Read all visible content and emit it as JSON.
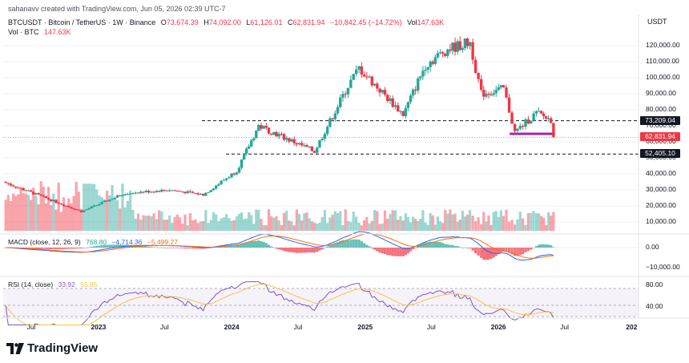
{
  "caption": "sahanavv created with TradingView.com, Jun 05, 2026 02:39 UTC-7",
  "header": {
    "symbol": "BTCUSDT · Bitcoin / TetherUS · 1W · Binance",
    "open_label": "O",
    "open": "73,674.39",
    "high_label": "H",
    "high": "74,092.00",
    "low_label": "L",
    "low": "61,126.01",
    "close_label": "C",
    "close": "62,831.94",
    "change": "−10,842.45 (−14.72%)",
    "vol_label": "Vol",
    "vol": "147.63K",
    "vol_line_label": "Vol · BTC",
    "vol_line_value": "147.63K"
  },
  "price_axis": {
    "currency": "USDT",
    "labels": [
      "120,000.00",
      "110,000.00",
      "100,000.00",
      "90,000.00",
      "80,000.00",
      "70,000.00",
      "60,000.00",
      "50,000.00",
      "40,000.00",
      "30,000.00",
      "20,000.00",
      "10,000.00"
    ],
    "badges": [
      {
        "value": "73,209.04",
        "color": "#131722"
      },
      {
        "value": "62,831.94",
        "color": "#f23645"
      },
      {
        "value": "52,405.10",
        "color": "#131722"
      }
    ]
  },
  "macd": {
    "title": "MACD (close, 12, 26, 9)",
    "hist_value": "768.80",
    "macd_value": "−4,714.36",
    "signal_value": "−5,499.27",
    "axis_labels": [
      "0.00",
      "−10,000.00"
    ],
    "colors": {
      "hist": "#26a69a",
      "macd": "#2962ff",
      "signal": "#ff6d00"
    }
  },
  "rsi": {
    "title": "RSI (14, close)",
    "value": "33.92",
    "ma_value": "55.85",
    "axis_labels": [
      "80.00",
      "40.00"
    ],
    "colors": {
      "rsi": "#7e57c2",
      "ma": "#f7c443"
    }
  },
  "time_axis": [
    {
      "label": "Jul",
      "year": false
    },
    {
      "label": "2023",
      "year": true
    },
    {
      "label": "Jul",
      "year": false
    },
    {
      "label": "2024",
      "year": true
    },
    {
      "label": "Jul",
      "year": false
    },
    {
      "label": "2025",
      "year": true
    },
    {
      "label": "Jul",
      "year": false
    },
    {
      "label": "2026",
      "year": true
    },
    {
      "label": "Jul",
      "year": false
    },
    {
      "label": "202",
      "year": true
    }
  ],
  "logo": {
    "text": "TradingView"
  },
  "chart_data": {
    "type": "candlestick",
    "interval": "1W",
    "colors": {
      "up": "#26a69a",
      "down": "#f23645"
    },
    "levels": [
      {
        "price": 73209.04,
        "style": "dashed"
      },
      {
        "price": 52405.1,
        "style": "dashed"
      },
      {
        "price": 65000,
        "style": "solid",
        "color": "#9c27b0"
      }
    ],
    "anchors": [
      {
        "date": "2022-04",
        "price": 35000
      },
      {
        "date": "2022-11",
        "price": 16500
      },
      {
        "date": "2023-03",
        "price": 28000
      },
      {
        "date": "2023-07",
        "price": 30000
      },
      {
        "date": "2023-10",
        "price": 27000
      },
      {
        "date": "2024-01",
        "price": 42000
      },
      {
        "date": "2024-03",
        "price": 70000
      },
      {
        "date": "2024-08",
        "price": 54000
      },
      {
        "date": "2024-11",
        "price": 95000
      },
      {
        "date": "2024-12",
        "price": 106000
      },
      {
        "date": "2025-04",
        "price": 77000
      },
      {
        "date": "2025-06",
        "price": 108000
      },
      {
        "date": "2025-08",
        "price": 118000
      },
      {
        "date": "2025-10",
        "price": 122000
      },
      {
        "date": "2025-11",
        "price": 90000
      },
      {
        "date": "2026-01",
        "price": 93000
      },
      {
        "date": "2026-02",
        "price": 66000
      },
      {
        "date": "2026-04",
        "price": 78000
      },
      {
        "date": "2026-05",
        "price": 73674.39
      },
      {
        "date": "2026-06",
        "price": 62831.94
      }
    ]
  }
}
